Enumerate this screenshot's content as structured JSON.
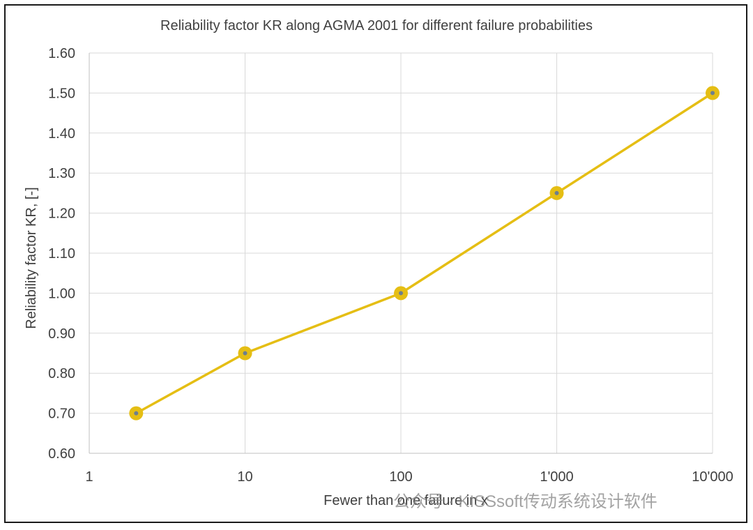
{
  "chart_data": {
    "type": "line",
    "title": "Reliability factor KR along AGMA 2001 for different failure probabilities",
    "xlabel": "Fewer than one failure in x",
    "ylabel": "Reliability factor KR, [-]",
    "x_scale": "log",
    "xlim": [
      1,
      10000
    ],
    "ylim": [
      0.6,
      1.6
    ],
    "x_ticks": [
      1,
      10,
      100,
      1000,
      10000
    ],
    "x_tick_labels": [
      "1",
      "10",
      "100",
      "1'000",
      "10'000"
    ],
    "y_ticks": [
      0.6,
      0.7,
      0.8,
      0.9,
      1.0,
      1.1,
      1.2,
      1.3,
      1.4,
      1.5,
      1.6
    ],
    "y_tick_labels": [
      "0.60",
      "0.70",
      "0.80",
      "0.90",
      "1.00",
      "1.10",
      "1.20",
      "1.30",
      "1.40",
      "1.50",
      "1.60"
    ],
    "grid": true,
    "legend": "none",
    "series": [
      {
        "x": [
          2,
          10,
          100,
          1000,
          10000
        ],
        "y": [
          0.7,
          0.85,
          1.0,
          1.25,
          1.5
        ],
        "color": "#e5be14",
        "marker_center_color": "#6d7f8f"
      }
    ]
  },
  "watermark": {
    "text": "公众号 · KISSsoft传动系统设计软件"
  }
}
